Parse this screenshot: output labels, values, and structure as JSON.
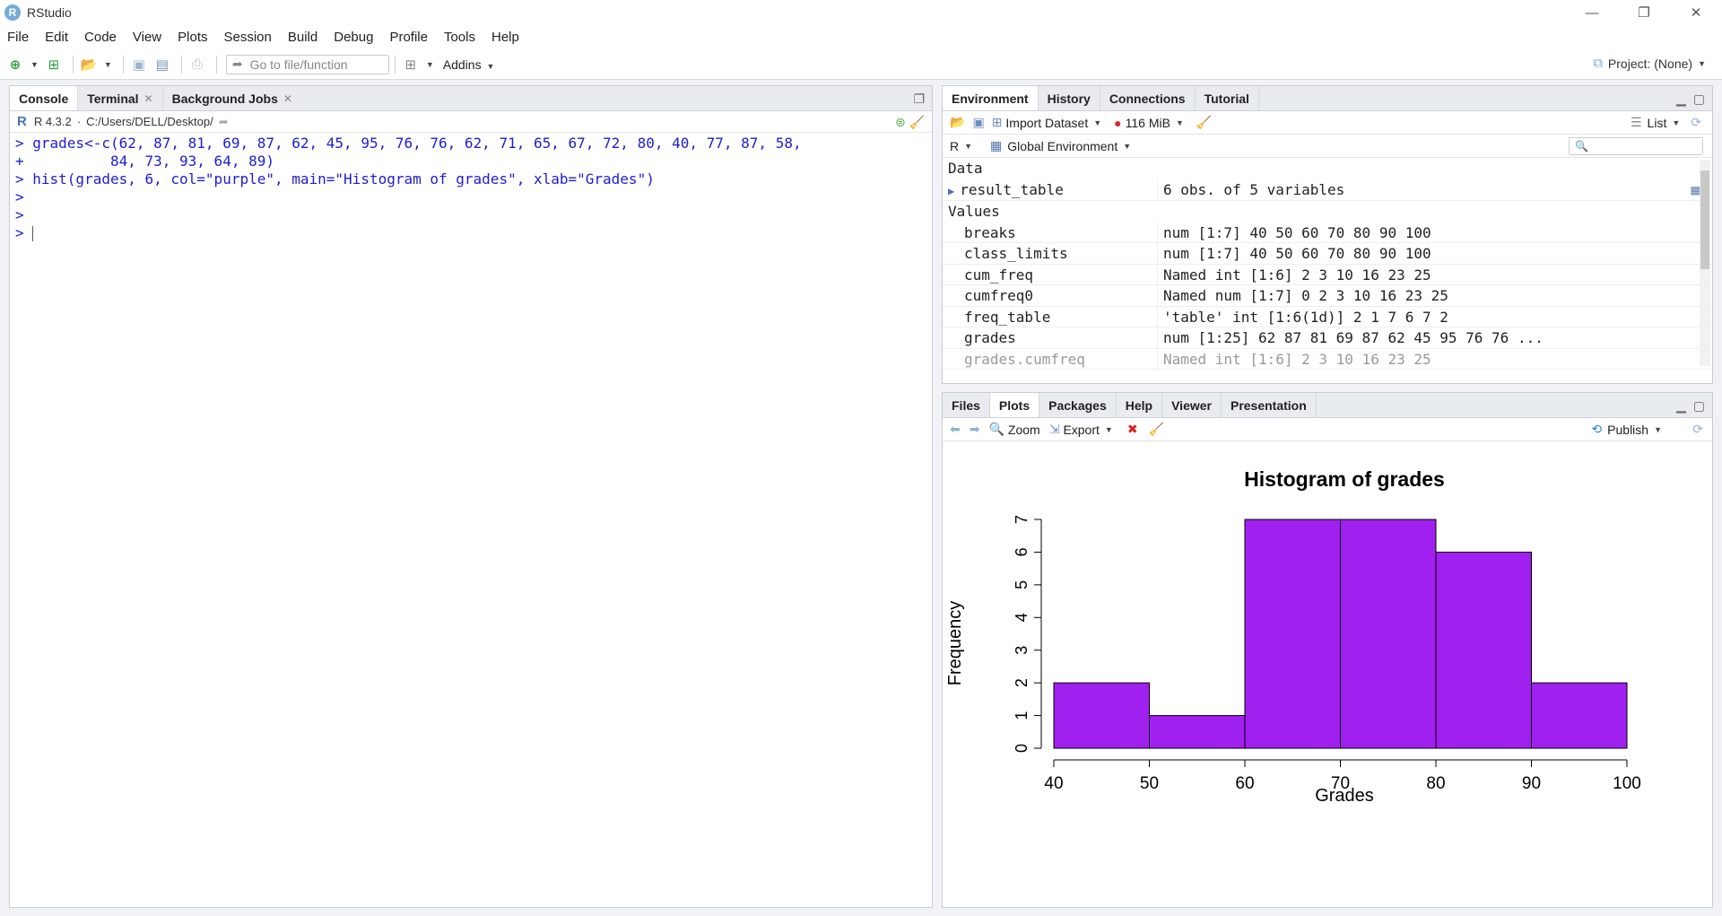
{
  "window": {
    "title": "RStudio",
    "minimize": "—",
    "maximize": "❐",
    "close": "✕"
  },
  "menu": [
    "File",
    "Edit",
    "Code",
    "View",
    "Plots",
    "Session",
    "Build",
    "Debug",
    "Profile",
    "Tools",
    "Help"
  ],
  "toolbar": {
    "goto_placeholder": "Go to file/function",
    "addins_label": "Addins",
    "project_label": "Project: (None)"
  },
  "console_pane": {
    "tabs": [
      "Console",
      "Terminal",
      "Background Jobs"
    ],
    "r_version": "R 4.3.2",
    "working_dir": "C:/Users/DELL/Desktop/",
    "lines": [
      "> grades<-c(62, 87, 81, 69, 87, 62, 45, 95, 76, 76, 62, 71, 65, 67, 72, 80, 40, 77, 87, 58,",
      "+          84, 73, 93, 64, 89)",
      "> hist(grades, 6, col=\"purple\", main=\"Histogram of grades\", xlab=\"Grades\")",
      ">",
      ">",
      "> "
    ]
  },
  "env_pane": {
    "tabs": [
      "Environment",
      "History",
      "Connections",
      "Tutorial"
    ],
    "import_label": "Import Dataset",
    "memory_label": "116 MiB",
    "view_label": "List",
    "language": "R",
    "scope": "Global Environment",
    "data_section": "Data",
    "values_section": "Values",
    "data_rows": [
      {
        "name": "result_table",
        "value": "6 obs. of 5 variables"
      }
    ],
    "value_rows": [
      {
        "name": "breaks",
        "value": "num [1:7] 40 50 60 70 80 90 100"
      },
      {
        "name": "class_limits",
        "value": "num [1:7] 40 50 60 70 80 90 100"
      },
      {
        "name": "cum_freq",
        "value": "Named int [1:6] 2 3 10 16 23 25"
      },
      {
        "name": "cumfreq0",
        "value": "Named num [1:7] 0 2 3 10 16 23 25"
      },
      {
        "name": "freq_table",
        "value": "'table' int [1:6(1d)] 2 1 7 6 7 2"
      },
      {
        "name": "grades",
        "value": "num [1:25] 62 87 81 69 87 62 45 95 76 76 ..."
      },
      {
        "name": "grades.cumfreq",
        "value": "Named int [1:6] 2 3 10 16 23 25"
      }
    ]
  },
  "plot_pane": {
    "tabs": [
      "Files",
      "Plots",
      "Packages",
      "Help",
      "Viewer",
      "Presentation"
    ],
    "zoom_label": "Zoom",
    "export_label": "Export",
    "publish_label": "Publish"
  },
  "chart_data": {
    "type": "bar",
    "title": "Histogram of grades",
    "xlabel": "Grades",
    "ylabel": "Frequency",
    "bins": [
      [
        40,
        50
      ],
      [
        50,
        60
      ],
      [
        60,
        70
      ],
      [
        70,
        80
      ],
      [
        80,
        90
      ],
      [
        90,
        100
      ]
    ],
    "values": [
      2,
      1,
      7,
      7,
      6,
      2
    ],
    "x_ticks": [
      40,
      50,
      60,
      70,
      80,
      90,
      100
    ],
    "y_ticks": [
      0,
      1,
      2,
      3,
      4,
      5,
      6,
      7
    ],
    "xlim": [
      40,
      100
    ],
    "ylim": [
      0,
      7
    ],
    "bar_color": "#a020f0",
    "grid": false
  }
}
